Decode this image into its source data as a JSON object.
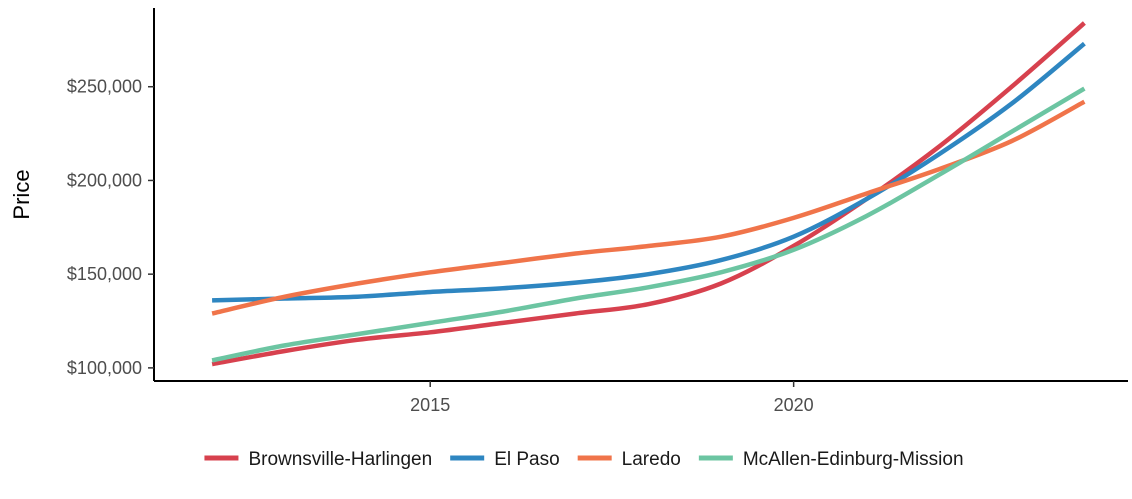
{
  "chart_data": {
    "type": "line",
    "ylabel": "Price",
    "xlim": [
      2011.2,
      2024.6
    ],
    "ylim": [
      93000,
      292000
    ],
    "x_ticks": [
      2015,
      2020
    ],
    "x_tick_labels": [
      "2015",
      "2020"
    ],
    "y_ticks": [
      100000,
      150000,
      200000,
      250000
    ],
    "y_tick_labels": [
      "$100,000",
      "$150,000",
      "$200,000",
      "$250,000"
    ],
    "grid": false,
    "legend_position": "bottom",
    "x": [
      2012,
      2013,
      2014,
      2015,
      2016,
      2017,
      2018,
      2019,
      2020,
      2021,
      2022,
      2023,
      2024
    ],
    "series": [
      {
        "name": "Brownsville-Harlingen",
        "color": "#d7414e",
        "values": [
          102000,
          109000,
          115000,
          119000,
          124000,
          129000,
          134000,
          145000,
          165000,
          190000,
          218000,
          250000,
          284000
        ]
      },
      {
        "name": "El Paso",
        "color": "#2e86c1",
        "values": [
          136000,
          137000,
          138000,
          140500,
          142500,
          145500,
          150000,
          157500,
          170000,
          190000,
          214000,
          241000,
          273000
        ]
      },
      {
        "name": "Laredo",
        "color": "#f0744a",
        "values": [
          129000,
          138000,
          145000,
          151000,
          156000,
          161000,
          165000,
          170000,
          180000,
          193000,
          206000,
          221000,
          242000
        ]
      },
      {
        "name": "McAllen-Edinburg-Mission",
        "color": "#6cc5a2",
        "values": [
          104000,
          112000,
          118000,
          124000,
          130000,
          137000,
          143000,
          151000,
          163000,
          181000,
          203000,
          226000,
          249000
        ]
      }
    ]
  }
}
